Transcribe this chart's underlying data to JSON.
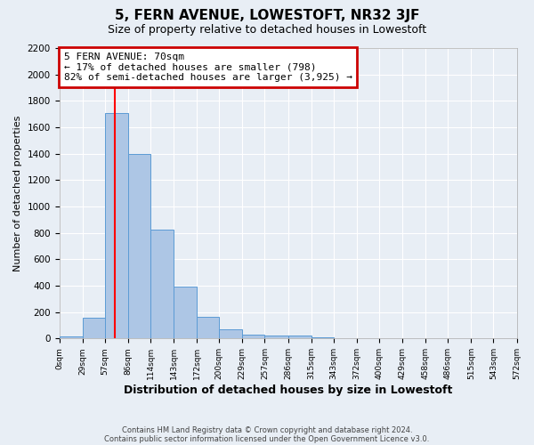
{
  "title": "5, FERN AVENUE, LOWESTOFT, NR32 3JF",
  "subtitle": "Size of property relative to detached houses in Lowestoft",
  "xlabel": "Distribution of detached houses by size in Lowestoft",
  "ylabel": "Number of detached properties",
  "bar_edges": [
    0,
    29,
    57,
    86,
    114,
    143,
    172,
    200,
    229,
    257,
    286,
    315,
    343,
    372,
    400,
    429,
    458,
    486,
    515,
    543,
    572
  ],
  "bar_heights": [
    15,
    155,
    1710,
    1400,
    825,
    390,
    165,
    70,
    30,
    20,
    25,
    12,
    0,
    0,
    0,
    0,
    0,
    0,
    0,
    0
  ],
  "bar_color": "#adc6e5",
  "bar_edge_color": "#5b9bd5",
  "red_line_x": 70,
  "annotation_line1": "5 FERN AVENUE: 70sqm",
  "annotation_line2": "← 17% of detached houses are smaller (798)",
  "annotation_line3": "82% of semi-detached houses are larger (3,925) →",
  "annotation_box_color": "#ffffff",
  "annotation_box_edge": "#cc0000",
  "ylim": [
    0,
    2200
  ],
  "yticks": [
    0,
    200,
    400,
    600,
    800,
    1000,
    1200,
    1400,
    1600,
    1800,
    2000,
    2200
  ],
  "tick_labels": [
    "0sqm",
    "29sqm",
    "57sqm",
    "86sqm",
    "114sqm",
    "143sqm",
    "172sqm",
    "200sqm",
    "229sqm",
    "257sqm",
    "286sqm",
    "315sqm",
    "343sqm",
    "372sqm",
    "400sqm",
    "429sqm",
    "458sqm",
    "486sqm",
    "515sqm",
    "543sqm",
    "572sqm"
  ],
  "background_color": "#e8eef5",
  "grid_color": "#ffffff",
  "footer_line1": "Contains HM Land Registry data © Crown copyright and database right 2024.",
  "footer_line2": "Contains public sector information licensed under the Open Government Licence v3.0."
}
